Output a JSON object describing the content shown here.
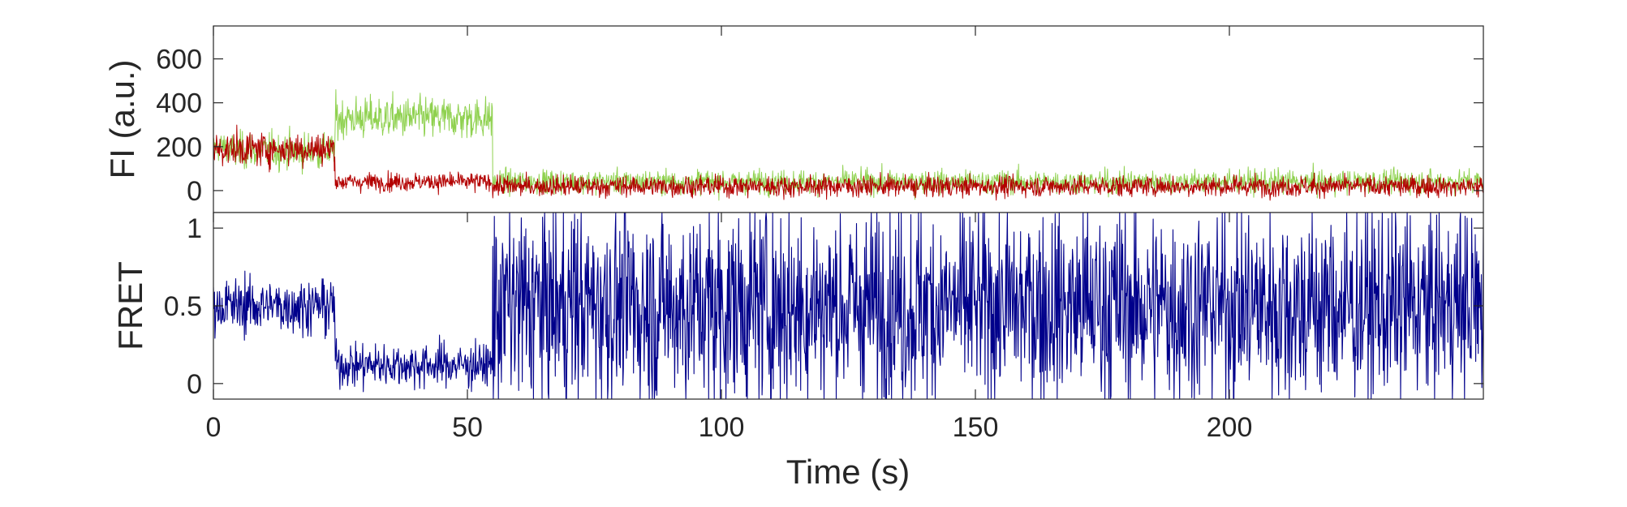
{
  "chart_data": [
    {
      "type": "line",
      "panel": "top",
      "ylabel": "FI (a.u.)",
      "xlim": [
        0,
        250
      ],
      "ylim": [
        -100,
        750
      ],
      "yticks": [
        0,
        200,
        400,
        600
      ],
      "ytick_labels": [
        "0",
        "200",
        "400",
        "600"
      ],
      "grid": false,
      "series": [
        {
          "color": "#8fd14f",
          "segments": [
            {
              "t_start": 0,
              "t_end": 3,
              "mean": 200,
              "noise": 55
            },
            {
              "t_start": 3,
              "t_end": 24,
              "mean": 180,
              "noise": 70
            },
            {
              "t_start": 24,
              "t_end": 55,
              "mean": 330,
              "noise": 80
            },
            {
              "t_start": 55,
              "t_end": 250,
              "mean": 40,
              "noise": 45
            }
          ]
        },
        {
          "color": "#b30000",
          "segments": [
            {
              "t_start": 0,
              "t_end": 24,
              "mean": 190,
              "noise": 65
            },
            {
              "t_start": 24,
              "t_end": 55,
              "mean": 40,
              "noise": 35
            },
            {
              "t_start": 55,
              "t_end": 250,
              "mean": 20,
              "noise": 40
            }
          ]
        }
      ]
    },
    {
      "type": "line",
      "panel": "bottom",
      "xlabel": "Time (s)",
      "ylabel": "FRET",
      "xlim": [
        0,
        250
      ],
      "ylim": [
        -0.1,
        1.1
      ],
      "xticks": [
        0,
        50,
        100,
        150,
        200
      ],
      "xtick_labels": [
        "0",
        "50",
        "100",
        "150",
        "200"
      ],
      "yticks": [
        0,
        0.5,
        1
      ],
      "ytick_labels": [
        "0",
        "0.5",
        "1"
      ],
      "grid": false,
      "series": [
        {
          "color": "#00008b",
          "segments": [
            {
              "t_start": 0,
              "t_end": 24,
              "mean": 0.5,
              "noise": 0.15
            },
            {
              "t_start": 24,
              "t_end": 55,
              "mean": 0.12,
              "noise": 0.12
            },
            {
              "t_start": 55,
              "t_end": 250,
              "mean": 0.5,
              "noise": 0.55
            }
          ]
        }
      ]
    }
  ]
}
